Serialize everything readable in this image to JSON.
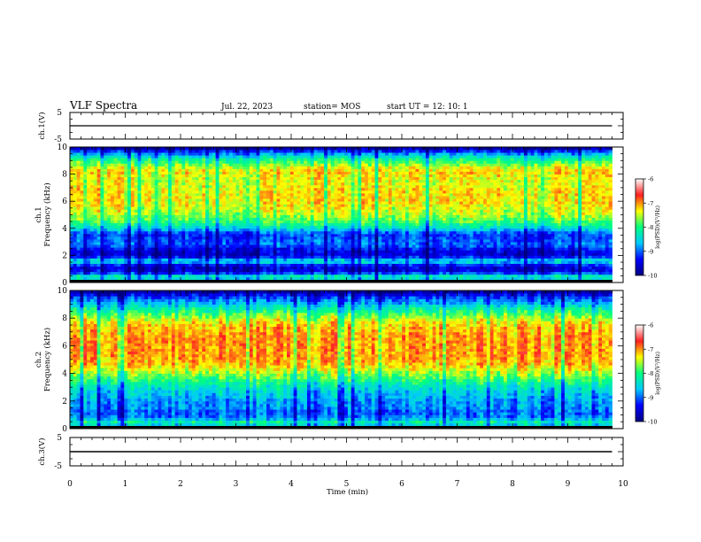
{
  "header": {
    "title": "VLF Spectra",
    "date": "Jul. 22, 2023",
    "station": "station= MOS",
    "start_ut": "start UT =  12: 10: 1"
  },
  "chart_data": [
    {
      "panel": "ch1-voltage",
      "type": "line",
      "ylabel": "ch.1(V)",
      "ylim": [
        -5,
        5
      ],
      "yticks": [
        "5",
        "-5"
      ],
      "xlim": [
        0,
        10
      ],
      "x": [
        0,
        9.8
      ],
      "y": [
        0,
        0
      ]
    },
    {
      "panel": "ch1-spectrogram",
      "type": "heatmap",
      "ylabel": "ch.1\nFrequency (kHz)",
      "ylim": [
        0,
        10
      ],
      "yticks": [
        "0",
        "2",
        "4",
        "6",
        "8",
        "10"
      ],
      "xlim": [
        0,
        10
      ],
      "data_end_min": 9.8,
      "profile_freq_khz": [
        0,
        0.4,
        0.8,
        1.2,
        1.6,
        2.0,
        2.4,
        2.8,
        3.2,
        3.6,
        4.0,
        4.4,
        4.8,
        5.2,
        5.6,
        6.0,
        6.4,
        6.8,
        7.2,
        7.6,
        8.0,
        8.4,
        8.8,
        9.2,
        9.6,
        10.0
      ],
      "profile_log_psd": [
        -10.0,
        -8.0,
        -9.5,
        -9.6,
        -8.4,
        -9.6,
        -9.5,
        -9.0,
        -9.1,
        -9.2,
        -8.5,
        -8.0,
        -7.7,
        -7.5,
        -7.4,
        -7.3,
        -7.3,
        -7.3,
        -7.4,
        -7.4,
        -7.3,
        -7.3,
        -7.8,
        -8.2,
        -9.0,
        -10.0
      ],
      "colorbar": {
        "label": "log(PSD)(V²/Hz)",
        "range": [
          -10,
          -6
        ],
        "ticks": [
          "-6",
          "-7",
          "-8",
          "-9",
          "-10"
        ]
      }
    },
    {
      "panel": "ch2-spectrogram",
      "type": "heatmap",
      "ylabel": "ch.2\nFrequency (kHz)",
      "ylim": [
        0,
        10
      ],
      "yticks": [
        "0",
        "2",
        "4",
        "6",
        "8",
        "10"
      ],
      "xlim": [
        0,
        10
      ],
      "data_end_min": 9.8,
      "profile_freq_khz": [
        0,
        0.4,
        0.8,
        1.2,
        1.6,
        2.0,
        2.4,
        2.8,
        3.2,
        3.6,
        4.0,
        4.4,
        4.8,
        5.2,
        5.6,
        6.0,
        6.4,
        6.8,
        7.2,
        7.6,
        8.0,
        8.4,
        8.8,
        9.2,
        9.6,
        10.0
      ],
      "profile_log_psd": [
        -10.0,
        -8.0,
        -8.9,
        -9.0,
        -8.8,
        -8.8,
        -8.6,
        -8.5,
        -8.2,
        -7.9,
        -7.6,
        -7.3,
        -7.1,
        -7.0,
        -7.0,
        -7.0,
        -7.0,
        -7.0,
        -7.1,
        -7.2,
        -7.5,
        -7.9,
        -8.3,
        -8.8,
        -9.2,
        -10.0
      ],
      "colorbar": {
        "label": "log(PSD)(V²/Hz)",
        "range": [
          -10,
          -6
        ],
        "ticks": [
          "-6",
          "-7",
          "-8",
          "-9",
          "-10"
        ]
      }
    },
    {
      "panel": "ch3-voltage",
      "type": "line",
      "ylabel": "ch.3(V)",
      "ylim": [
        -5,
        5
      ],
      "yticks": [
        "5",
        "-5"
      ],
      "xlim": [
        0,
        10
      ],
      "x": [
        0,
        9.8
      ],
      "y": [
        0,
        0
      ],
      "xlabel": "Time (min)",
      "xticks": [
        "0",
        "1",
        "2",
        "3",
        "4",
        "5",
        "6",
        "7",
        "8",
        "9",
        "10"
      ]
    }
  ],
  "colors": {
    "colormap": [
      "#000080",
      "#0000ff",
      "#00c8ff",
      "#00ff80",
      "#ffff00",
      "#ff2020",
      "#ffffff"
    ]
  }
}
